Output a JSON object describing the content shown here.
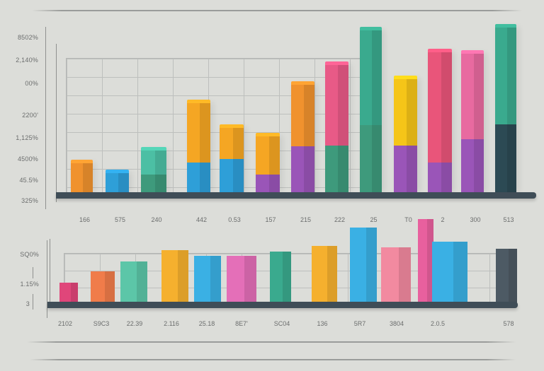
{
  "chart_data": [
    {
      "type": "bar",
      "subtype": "stacked-3d",
      "title": "",
      "xlabel": "",
      "ylabel": "",
      "y_tick_labels": [
        "8502%",
        "2,140%",
        "00%",
        "2200'",
        "1,125%",
        "4500%",
        "45.5%",
        "325%"
      ],
      "categories": [
        "166",
        "575",
        "240",
        "442",
        "0.53",
        "157",
        "215",
        "222",
        "25",
        "T0",
        "2",
        "300",
        "513"
      ],
      "series": [
        {
          "name": "bottom segment",
          "colors": [
            "#f0922e",
            "#2e9fd8",
            "#3e9a7c",
            "#2e9fd8",
            "#2e9fd8",
            "#9a55b8",
            "#9a55b8",
            "#3e9a7c",
            "#3e9a7c",
            "#9a55b8",
            "#9a55b8",
            "#9a55b8",
            "#2c4a54"
          ],
          "values": [
            42,
            28,
            25,
            42,
            47,
            25,
            65,
            66,
            95,
            66,
            42,
            75,
            96
          ]
        },
        {
          "name": "top segment",
          "colors": [
            "#f0922e",
            "#2e9fd8",
            "#4cbfa4",
            "#f5a623",
            "#f5a623",
            "#f5a623",
            "#f0922e",
            "#e85a87",
            "#3aaa8e",
            "#f5c518",
            "#e9557a",
            "#e86aa0",
            "#3aaa8e"
          ],
          "values": [
            0,
            0,
            35,
            85,
            45,
            55,
            88,
            115,
            135,
            95,
            157,
            122,
            138
          ]
        }
      ],
      "grid": true,
      "legend": "none"
    },
    {
      "type": "bar",
      "subtype": "grouped-3d",
      "title": "",
      "xlabel": "",
      "ylabel": "",
      "y_tick_labels": [
        "SQ0%",
        "1.15%",
        "3"
      ],
      "categories": [
        "2102",
        "S9C3",
        "22.39",
        "2.116",
        "25.18",
        "8E7'",
        "SC04",
        "136",
        "5R7",
        "3804",
        "2.0.5",
        "",
        "578"
      ],
      "series": [
        {
          "name": "bars",
          "colors": [
            "#e0467a",
            "#f07c4a",
            "#5cc6a8",
            "#f5b02e",
            "#3ab0e4",
            "#e46fb8",
            "#3aaa8e",
            "#f5b02e",
            "#3ab0e4",
            "#f28aa0",
            "#e8609e",
            "#3ab0e4",
            "#4d5a64"
          ],
          "values": [
            28,
            44,
            58,
            74,
            66,
            66,
            72,
            80,
            106,
            78,
            118,
            86,
            76
          ]
        }
      ],
      "grid": true,
      "legend": "none"
    }
  ]
}
